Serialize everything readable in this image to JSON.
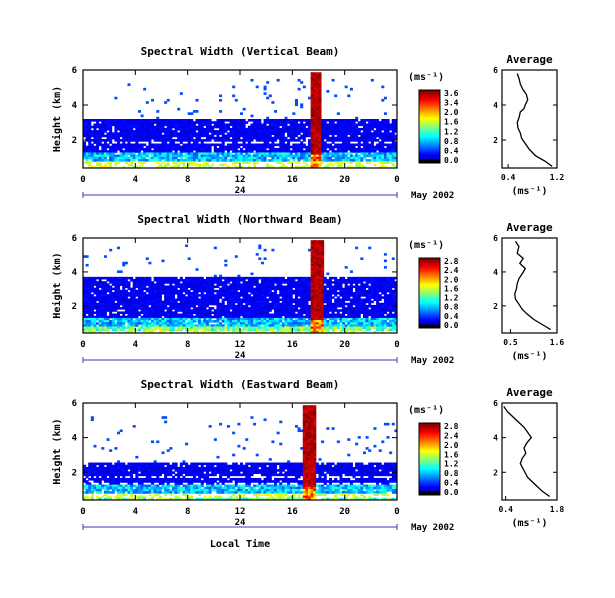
{
  "figure": {
    "xlabel": "Local Time",
    "date_label": "May 2002",
    "x_ticks": [
      "0",
      "4",
      "8",
      "12",
      "16",
      "20",
      "0"
    ],
    "day_label": "24",
    "unit_label": "(ms⁻¹)"
  },
  "chart_data": [
    {
      "type": "heatmap",
      "title": "Spectral Width (Vertical Beam)",
      "ylabel": "Height (km)",
      "xlabel": "",
      "xlim": [
        0,
        24
      ],
      "ylim": [
        0.4,
        6
      ],
      "y_ticks": [
        "6",
        "4",
        "2"
      ],
      "colorbar_ticks": [
        "3.6",
        "3.4",
        "2.0",
        "1.6",
        "1.2",
        "0.8",
        "0.4",
        "0.0"
      ],
      "echo_top_km": 3.2,
      "sparse_top_km": 5.5,
      "high_width_band_hours": [
        17.4,
        18.1
      ],
      "date": "May 2002"
    },
    {
      "type": "line",
      "title": "Average",
      "xlabel": "(ms⁻¹)",
      "x_ticks": [
        "0.4",
        "1.2"
      ],
      "y_ticks": [
        "6",
        "4",
        "2"
      ],
      "xlim": [
        0.3,
        1.2
      ],
      "ylim": [
        0.4,
        6
      ],
      "x": [
        0.55,
        0.58,
        0.6,
        0.64,
        0.7,
        0.72,
        0.68,
        0.66,
        0.6,
        0.58,
        0.55,
        0.56,
        0.6,
        0.62,
        0.68,
        0.74,
        0.85,
        1.0,
        1.12
      ],
      "y": [
        5.8,
        5.5,
        5.2,
        4.9,
        4.6,
        4.3,
        4.0,
        3.8,
        3.6,
        3.3,
        3.0,
        2.7,
        2.4,
        2.1,
        1.8,
        1.5,
        1.1,
        0.8,
        0.5
      ]
    },
    {
      "type": "heatmap",
      "title": "Spectral Width (Northward Beam)",
      "ylabel": "Height (km)",
      "xlabel": "",
      "xlim": [
        0,
        24
      ],
      "ylim": [
        0.4,
        6
      ],
      "y_ticks": [
        "6",
        "4",
        "2"
      ],
      "colorbar_ticks": [
        "2.8",
        "2.4",
        "2.0",
        "1.6",
        "1.2",
        "0.8",
        "0.4",
        "0.0"
      ],
      "echo_top_km": 3.7,
      "sparse_top_km": 5.6,
      "high_width_band_hours": [
        17.5,
        18.3
      ],
      "date": "May 2002"
    },
    {
      "type": "line",
      "title": "Average",
      "xlabel": "(ms⁻¹)",
      "x_ticks": [
        "0.5",
        "1.6"
      ],
      "y_ticks": [
        "6",
        "4",
        "2"
      ],
      "xlim": [
        0.3,
        1.6
      ],
      "ylim": [
        0.4,
        6
      ],
      "x": [
        0.62,
        0.7,
        0.66,
        0.8,
        0.72,
        0.85,
        0.78,
        0.7,
        0.66,
        0.64,
        0.6,
        0.62,
        0.7,
        0.78,
        0.9,
        1.05,
        1.25,
        1.45
      ],
      "y": [
        5.8,
        5.5,
        5.1,
        4.8,
        4.5,
        4.2,
        3.9,
        3.6,
        3.3,
        3.0,
        2.7,
        2.4,
        2.1,
        1.8,
        1.5,
        1.2,
        0.9,
        0.6
      ]
    },
    {
      "type": "heatmap",
      "title": "Spectral Width (Eastward Beam)",
      "ylabel": "Height (km)",
      "xlabel": "Local Time",
      "xlim": [
        0,
        24
      ],
      "ylim": [
        0.4,
        6
      ],
      "y_ticks": [
        "6",
        "4",
        "2"
      ],
      "colorbar_ticks": [
        "2.8",
        "2.4",
        "2.0",
        "1.6",
        "1.2",
        "0.8",
        "0.4",
        "0.0"
      ],
      "echo_top_km": 2.6,
      "sparse_top_km": 5.2,
      "high_width_band_hours": [
        16.9,
        17.8
      ],
      "date": "May 2002"
    },
    {
      "type": "line",
      "title": "Average",
      "xlabel": "(ms⁻¹)",
      "x_ticks": [
        "0.4",
        "1.8"
      ],
      "y_ticks": [
        "6",
        "4",
        "2"
      ],
      "xlim": [
        0.3,
        1.8
      ],
      "ylim": [
        0.4,
        6
      ],
      "x": [
        0.35,
        0.45,
        0.6,
        0.75,
        0.9,
        1.0,
        1.1,
        0.98,
        0.9,
        0.95,
        0.85,
        0.8,
        0.9,
        1.0,
        1.2,
        1.4,
        1.6
      ],
      "y": [
        5.8,
        5.5,
        5.2,
        4.9,
        4.6,
        4.3,
        4.0,
        3.7,
        3.4,
        3.1,
        2.8,
        2.5,
        2.1,
        1.7,
        1.3,
        0.9,
        0.6
      ]
    }
  ]
}
